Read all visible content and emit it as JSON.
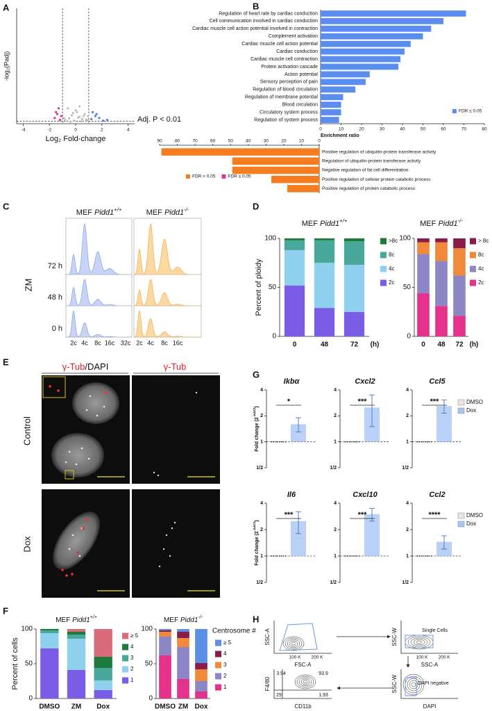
{
  "panel_labels": [
    "A",
    "B",
    "C",
    "D",
    "E",
    "F",
    "G",
    "H"
  ],
  "chart_data": [
    {
      "type": "scatter",
      "ylabel": "-log₂(Padj)",
      "xlabel": "Log₂ Fold-change",
      "annotation": "Adj. P < 0.01",
      "xlim": [
        -4.5,
        4.5
      ],
      "xticks": [
        -4,
        -2,
        0,
        2,
        4
      ],
      "ylim": [
        0,
        300
      ],
      "fold_change_cutoffs": [
        -1,
        1
      ],
      "padj_cutoff": 6.64,
      "series": [
        {
          "color": "#bdbdbd",
          "x": [
            -0.8,
            -0.5,
            -0.3,
            -0.1,
            0.1,
            0.3,
            0.5,
            0.7,
            0.9,
            -0.6,
            0.2,
            0.4,
            -0.2,
            0.6,
            0.8,
            0.0,
            -0.4,
            0.3,
            -0.9,
            0.95
          ],
          "values": [
            10,
            14,
            22,
            8,
            30,
            18,
            12,
            25,
            9,
            40,
            16,
            6,
            28,
            20,
            11,
            35,
            5,
            45,
            15,
            20
          ]
        },
        {
          "color": "#e0337f",
          "x": [
            -1.6,
            -1.4,
            -1.3,
            -1.2,
            -1.5,
            -1.1
          ],
          "values": [
            15,
            25,
            40,
            10,
            30,
            20
          ]
        },
        {
          "color": "#4a7fe0",
          "x": [
            1.2,
            1.5,
            1.8,
            2.1,
            1.3,
            2.4,
            1.6
          ],
          "values": [
            12,
            20,
            15,
            8,
            30,
            10,
            25
          ]
        }
      ]
    },
    {
      "type": "bar",
      "orientation": "horizontal",
      "color": "#5b8def",
      "categories": [
        "Regulation of heart rate by cardiac conduction",
        "Cell communication involved in cardiac conduction",
        "Cardiac muscle cell action potential involved in contraction",
        "Complement activation",
        "Cardiac muscle cell action potential",
        "Cardiac conduction",
        "Cardiac muscle cell contraction",
        "Protein activation cascade",
        "Action potential",
        "Sensory perception of pain",
        "Regulation of blood circulation",
        "Regulation of membrane potential",
        "Blood circulation",
        "Circulatory system process",
        "Regulation of system process"
      ],
      "values": [
        71,
        60,
        54,
        50,
        44,
        41,
        39,
        38,
        24,
        22,
        17,
        11,
        10,
        10,
        9
      ],
      "xlim": [
        0,
        80
      ],
      "xticks": [
        0,
        10,
        20,
        30,
        40,
        50,
        60,
        70,
        80
      ],
      "xlabel": "Enrichment ratio",
      "legend": [
        {
          "name": "FDR ≤ 0.05",
          "color": "#5b8def"
        }
      ]
    },
    {
      "type": "bar",
      "orientation": "horizontal",
      "x_reversed": true,
      "color": "#f57c1f",
      "categories": [
        "Positive regulation of ubiquitin-protein transferase activity",
        "Regulation of ubiquitin-protein transferase activity",
        "Negative regulation of fat cell differentiation",
        "Positive regulation of cellular protein catabolic process",
        "Positive regulation of protein catabolic process"
      ],
      "values": [
        89,
        49,
        49,
        27,
        18
      ],
      "xlim": [
        0,
        90
      ],
      "xticks": [
        0,
        10,
        20,
        30,
        40,
        50,
        60,
        70,
        80,
        90
      ],
      "legend": [
        {
          "name": "FDR > 0.05",
          "color": "#f57c1f"
        },
        {
          "name": "FDR ≤ 0.05",
          "color": "#e0338a"
        }
      ]
    },
    {
      "type": "stacked_bar",
      "title": {
        "prefix": "MEF",
        "gene": "Pidd1",
        "allele": "+/+"
      },
      "ylabel": "Percent of ploidy",
      "categories": [
        "0",
        "48",
        "72"
      ],
      "xunit": "(h)",
      "ylim": [
        0,
        100
      ],
      "yticks": [
        0,
        50,
        100
      ],
      "series": [
        {
          "name": "2c",
          "color": "#7b5ce6",
          "values": [
            52,
            29,
            25
          ]
        },
        {
          "name": "4c",
          "color": "#8fd0ef",
          "values": [
            36,
            46,
            48
          ]
        },
        {
          "name": "8c",
          "color": "#48a89a",
          "values": [
            10,
            23,
            24
          ]
        },
        {
          "name": ">8c",
          "color": "#1d7a3a",
          "values": [
            2,
            2,
            3
          ]
        }
      ]
    },
    {
      "type": "stacked_bar",
      "title": {
        "prefix": "MEF",
        "gene": "Pidd1",
        "allele": "-/-"
      },
      "categories": [
        "0",
        "48",
        "72"
      ],
      "xunit": "(h)",
      "ylim": [
        0,
        100
      ],
      "yticks": [
        0,
        50,
        100
      ],
      "series": [
        {
          "name": "2c",
          "color": "#e5338c",
          "values": [
            44,
            31,
            21
          ]
        },
        {
          "name": "4c",
          "color": "#8c86c6",
          "values": [
            40,
            46,
            41
          ]
        },
        {
          "name": "8c",
          "color": "#f2893a",
          "values": [
            12,
            19,
            28
          ]
        },
        {
          "name": "> 8c",
          "color": "#8a1c4c",
          "values": [
            4,
            4,
            10
          ]
        }
      ]
    },
    {
      "type": "stacked_bar",
      "title": {
        "prefix": "MEF",
        "gene": "Pidd1",
        "allele": "+/+"
      },
      "ylabel": "Percent of cells",
      "categories": [
        "DMSO",
        "ZM",
        "Dox"
      ],
      "ylim": [
        0,
        100
      ],
      "yticks": [
        0,
        50,
        100
      ],
      "series": [
        {
          "name": "1",
          "color": "#7b5ce6",
          "values": [
            72,
            41,
            12
          ]
        },
        {
          "name": "2",
          "color": "#8fd0ef",
          "values": [
            22,
            45,
            14
          ]
        },
        {
          "name": "3",
          "color": "#48a89a",
          "values": [
            4,
            6,
            18
          ]
        },
        {
          "name": "4",
          "color": "#1d7a3a",
          "values": [
            2,
            4,
            16
          ]
        },
        {
          "name": "≥ 5",
          "color": "#d96c7a",
          "values": [
            0,
            4,
            40
          ]
        }
      ]
    },
    {
      "type": "stacked_bar",
      "title": {
        "prefix": "MEF",
        "gene": "Pidd1",
        "allele": "-/-"
      },
      "legend_title": "Centrosome #",
      "categories": [
        "DMSO",
        "ZM",
        "Dox"
      ],
      "ylim": [
        0,
        100
      ],
      "yticks": [
        0,
        50,
        100
      ],
      "series": [
        {
          "name": "1",
          "color": "#e5338c",
          "values": [
            62,
            28,
            10
          ]
        },
        {
          "name": "2",
          "color": "#8c86c6",
          "values": [
            27,
            46,
            15
          ]
        },
        {
          "name": "3",
          "color": "#f2893a",
          "values": [
            7,
            13,
            17
          ]
        },
        {
          "name": "4",
          "color": "#8a1c4c",
          "values": [
            2,
            9,
            9
          ]
        },
        {
          "name": "≥ 5",
          "color": "#5b8fe8",
          "values": [
            2,
            4,
            49
          ]
        }
      ]
    },
    {
      "type": "bar_panel",
      "ylabel": {
        "text": "Fold change (2",
        "exponent": "-ΔΔCt",
        "close": ")"
      },
      "log_base": 2,
      "ylim": [
        0.5,
        4
      ],
      "yticks": [
        {
          "value": 0.5,
          "label": "1/2"
        },
        1,
        2,
        4
      ],
      "baseline": 1,
      "series": [
        {
          "name": "DMSO",
          "color": "#e6e6e6"
        },
        {
          "name": "Dox",
          "color": "#a9c5f5"
        }
      ],
      "genes": [
        {
          "title": "Ikbα",
          "values": [
            1,
            1.6
          ],
          "errors": [
            0,
            0.3
          ],
          "significance": "*"
        },
        {
          "title": "Cxcl2",
          "values": [
            1,
            2.5
          ],
          "errors": [
            0,
            1.0
          ],
          "significance": "***"
        },
        {
          "title": "Ccl5",
          "values": [
            1,
            2.6
          ],
          "errors": [
            0,
            0.45
          ],
          "significance": "***"
        },
        {
          "title": "Il6",
          "values": [
            1,
            2.5
          ],
          "errors": [
            0,
            0.7
          ],
          "significance": "***"
        },
        {
          "title": "Cxcl10",
          "values": [
            1,
            3.0
          ],
          "errors": [
            0,
            0.5
          ],
          "significance": "***"
        },
        {
          "title": "Ccl2",
          "values": [
            1,
            1.45
          ],
          "errors": [
            0,
            0.25
          ],
          "significance": "****"
        }
      ]
    }
  ],
  "panel_c": {
    "titles": [
      {
        "prefix": "MEF",
        "gene": "Pidd1",
        "allele": "+/+"
      },
      {
        "prefix": "MEF",
        "gene": "Pidd1",
        "allele": "-/-"
      }
    ],
    "treatment": "ZM",
    "timepoints": [
      "72 h",
      "48 h",
      "0 h"
    ],
    "ploidy_labels": [
      [
        "2c",
        "4c",
        "8c",
        "16c",
        "32c"
      ],
      [
        "2c",
        "4c",
        "8c",
        "16c"
      ]
    ]
  },
  "panel_e": {
    "columns": [
      [
        "γ-Tub",
        "/DAPI"
      ],
      [
        "γ-Tub"
      ]
    ],
    "rows": [
      "Control",
      "Dox"
    ]
  },
  "panel_h": {
    "plots": [
      {
        "ylabel": "SSC-A",
        "xlabel": "FSC-A",
        "xticks": [
          "100 K",
          "200 K"
        ]
      },
      {
        "ylabel": "SSC-W",
        "xlabel": "SSC-A",
        "xticks": [
          "100 K",
          "200 K"
        ],
        "gate": "Single Cells"
      },
      {
        "ylabel": "F4/80",
        "xlabel": "CD11b",
        "quadrants": [
          3.94,
          93.9,
          29,
          1.93
        ]
      },
      {
        "ylabel": "SSC-W",
        "xlabel": "DAPI",
        "gate": "DAPI negative"
      }
    ]
  }
}
